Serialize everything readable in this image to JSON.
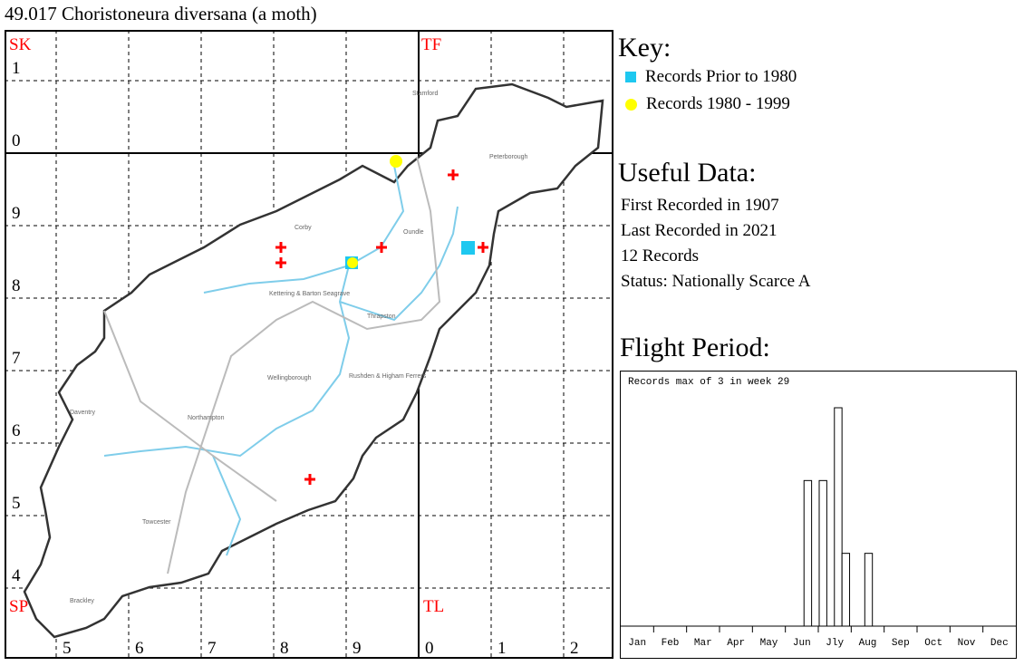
{
  "title": "49.017 Choristoneura diversana (a moth)",
  "map": {
    "squares": {
      "nw": "SK",
      "ne": "TF",
      "sw": "SP",
      "se": "TL"
    },
    "row_labels": [
      "1",
      "0",
      "9",
      "8",
      "7",
      "6",
      "5",
      "4"
    ],
    "col_labels": [
      "5",
      "6",
      "7",
      "8",
      "9",
      "0",
      "1",
      "2"
    ],
    "towns": [
      "Stamford",
      "Peterborough",
      "Corby",
      "Oundle",
      "Kettering & Barton Seagrave",
      "Thrapston",
      "Wellingborough",
      "Rushden & Higham Ferrers",
      "Daventry",
      "Northampton",
      "Towcester",
      "Brackley"
    ],
    "colors": {
      "pre1980": "#1ec8f0",
      "r1980_1999": "#ffff00",
      "recent": "#ff0000",
      "grid_label": "#ff0000"
    }
  },
  "key": {
    "heading": "Key:",
    "items": [
      {
        "label": "Records Prior to 1980",
        "symbol": "square"
      },
      {
        "label": "Records 1980 - 1999",
        "symbol": "circle"
      }
    ]
  },
  "useful": {
    "heading": "Useful Data:",
    "first": "First Recorded in 1907",
    "last": "Last Recorded in 2021",
    "count": "12 Records",
    "status": "Status: Nationally Scarce A"
  },
  "flight": {
    "heading": "Flight Period:"
  },
  "chart_data": {
    "type": "bar",
    "title": "Records max of 3 in week 29",
    "months": [
      "Jan",
      "Feb",
      "Mar",
      "Apr",
      "May",
      "Jun",
      "Jly",
      "Aug",
      "Sep",
      "Oct",
      "Nov",
      "Dec"
    ],
    "weeks": [
      25,
      27,
      29,
      30,
      33
    ],
    "values": [
      2,
      2,
      3,
      1,
      1
    ],
    "ylim": [
      0,
      3
    ],
    "xlim": [
      1,
      52
    ]
  }
}
